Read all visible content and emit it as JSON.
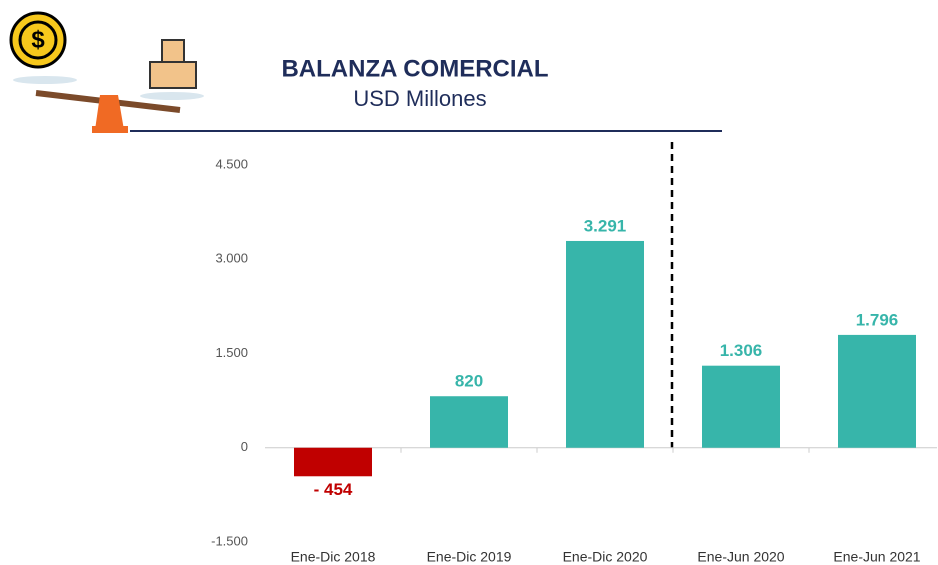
{
  "chart_data": {
    "type": "bar",
    "title": "BALANZA COMERCIAL",
    "subtitle": "USD Millones",
    "categories": [
      "Ene-Dic 2018",
      "Ene-Dic 2019",
      "Ene-Dic 2020",
      "Ene-Jun 2020",
      "Ene-Jun 2021"
    ],
    "values": [
      -454,
      820,
      3291,
      1306,
      1796
    ],
    "value_labels": [
      "- 454",
      "820",
      "3.291",
      "1.306",
      "1.796"
    ],
    "colors": [
      "#c00000",
      "#37b5aa",
      "#37b5aa",
      "#37b5aa",
      "#37b5aa"
    ],
    "ylim": [
      -1500,
      4500
    ],
    "yticks": [
      {
        "value": -1500,
        "label": "-1.500"
      },
      0,
      {
        "value": 1500,
        "label": "1.500"
      },
      {
        "value": 3000,
        "label": "3.000"
      },
      {
        "value": 4500,
        "label": "4.500"
      }
    ],
    "grid": false
  }
}
